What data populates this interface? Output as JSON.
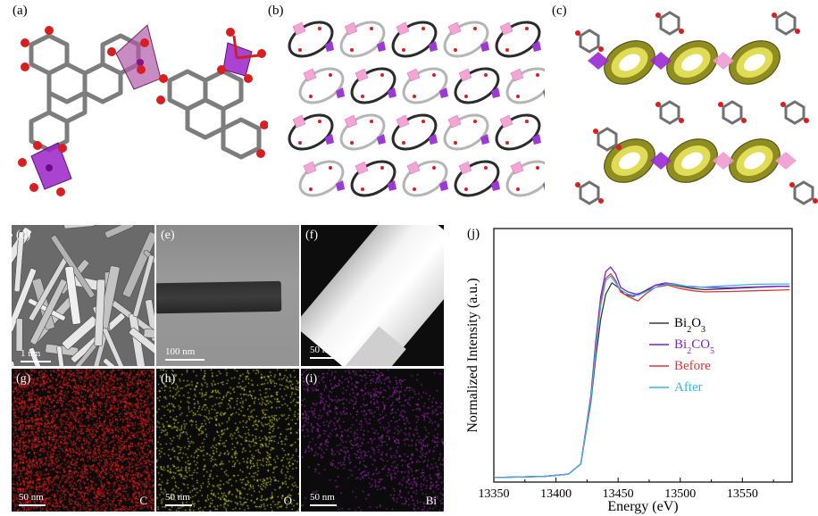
{
  "panels": {
    "a": {
      "label": "(a)"
    },
    "b": {
      "label": "(b)"
    },
    "c": {
      "label": "(c)"
    },
    "d": {
      "label": "(d)",
      "scale": "1 um"
    },
    "e": {
      "label": "(e)",
      "scale": "100 nm"
    },
    "f": {
      "label": "(f)",
      "scale": "50 nm"
    },
    "g": {
      "label": "(g)",
      "scale": "50 nm",
      "element": "C",
      "dot_color": "#ff2020"
    },
    "h": {
      "label": "(h)",
      "scale": "50 nm",
      "element": "O",
      "dot_color": "#e8ef30"
    },
    "i": {
      "label": "(i)",
      "scale": "50 nm",
      "element": "Bi",
      "dot_color": "#c02ad8"
    },
    "j": {
      "label": "(j)"
    }
  },
  "chart_data": {
    "type": "line",
    "xlabel": "Energy (eV)",
    "ylabel": "Normalized Intensity (a.u.)",
    "xlim": [
      13350,
      13590
    ],
    "ylim": [
      0,
      1.12
    ],
    "xticks": [
      13350,
      13400,
      13450,
      13500,
      13550
    ],
    "xtick_labels": [
      "13350",
      "13400",
      "13450",
      "13500",
      "13550"
    ],
    "legend_position": "right-middle",
    "series": [
      {
        "name": "Bi2O3",
        "name_main": "Bi",
        "name_sub1": "2",
        "name_mid": "O",
        "name_sub2": "3",
        "name_tail": "",
        "color": "#3a3a3a",
        "x": [
          13350,
          13390,
          13410,
          13420,
          13428,
          13432,
          13436,
          13440,
          13445,
          13450,
          13455,
          13462,
          13470,
          13480,
          13490,
          13500,
          13510,
          13520,
          13540,
          13560,
          13580,
          13588
        ],
        "y": [
          0.02,
          0.025,
          0.035,
          0.08,
          0.35,
          0.55,
          0.72,
          0.83,
          0.88,
          0.86,
          0.83,
          0.82,
          0.84,
          0.87,
          0.875,
          0.865,
          0.855,
          0.85,
          0.855,
          0.86,
          0.865,
          0.865
        ]
      },
      {
        "name": "Bi2CO5",
        "name_main": "Bi",
        "name_sub1": "2",
        "name_mid": "CO",
        "name_sub2": "5",
        "name_tail": "",
        "color": "#7a1fe0",
        "x": [
          13350,
          13390,
          13410,
          13420,
          13428,
          13432,
          13436,
          13440,
          13444,
          13448,
          13452,
          13458,
          13465,
          13472,
          13480,
          13488,
          13495,
          13505,
          13520,
          13540,
          13560,
          13580,
          13588
        ],
        "y": [
          0.02,
          0.025,
          0.035,
          0.08,
          0.38,
          0.62,
          0.82,
          0.93,
          0.95,
          0.92,
          0.86,
          0.84,
          0.83,
          0.84,
          0.87,
          0.88,
          0.875,
          0.865,
          0.86,
          0.858,
          0.862,
          0.865,
          0.865
        ]
      },
      {
        "name": "Before",
        "name_main": "Before",
        "name_sub1": "",
        "name_mid": "",
        "name_sub2": "",
        "name_tail": "",
        "color": "#e03434",
        "x": [
          13350,
          13390,
          13410,
          13420,
          13428,
          13432,
          13436,
          13440,
          13444,
          13448,
          13452,
          13458,
          13466,
          13472,
          13480,
          13490,
          13500,
          13510,
          13520,
          13540,
          13560,
          13580,
          13588
        ],
        "y": [
          0.02,
          0.025,
          0.035,
          0.08,
          0.37,
          0.6,
          0.8,
          0.9,
          0.92,
          0.89,
          0.84,
          0.82,
          0.8,
          0.83,
          0.86,
          0.87,
          0.855,
          0.845,
          0.84,
          0.842,
          0.845,
          0.848,
          0.85
        ]
      },
      {
        "name": "After",
        "name_main": "After",
        "name_sub1": "",
        "name_mid": "",
        "name_sub2": "",
        "name_tail": "",
        "color": "#3ab4e8",
        "x": [
          13350,
          13390,
          13410,
          13420,
          13428,
          13432,
          13436,
          13440,
          13444,
          13448,
          13452,
          13458,
          13466,
          13474,
          13482,
          13490,
          13500,
          13510,
          13520,
          13540,
          13560,
          13580,
          13588
        ],
        "y": [
          0.02,
          0.025,
          0.035,
          0.08,
          0.36,
          0.58,
          0.78,
          0.89,
          0.91,
          0.88,
          0.85,
          0.83,
          0.825,
          0.845,
          0.865,
          0.875,
          0.87,
          0.86,
          0.862,
          0.868,
          0.874,
          0.875,
          0.875
        ]
      }
    ]
  }
}
